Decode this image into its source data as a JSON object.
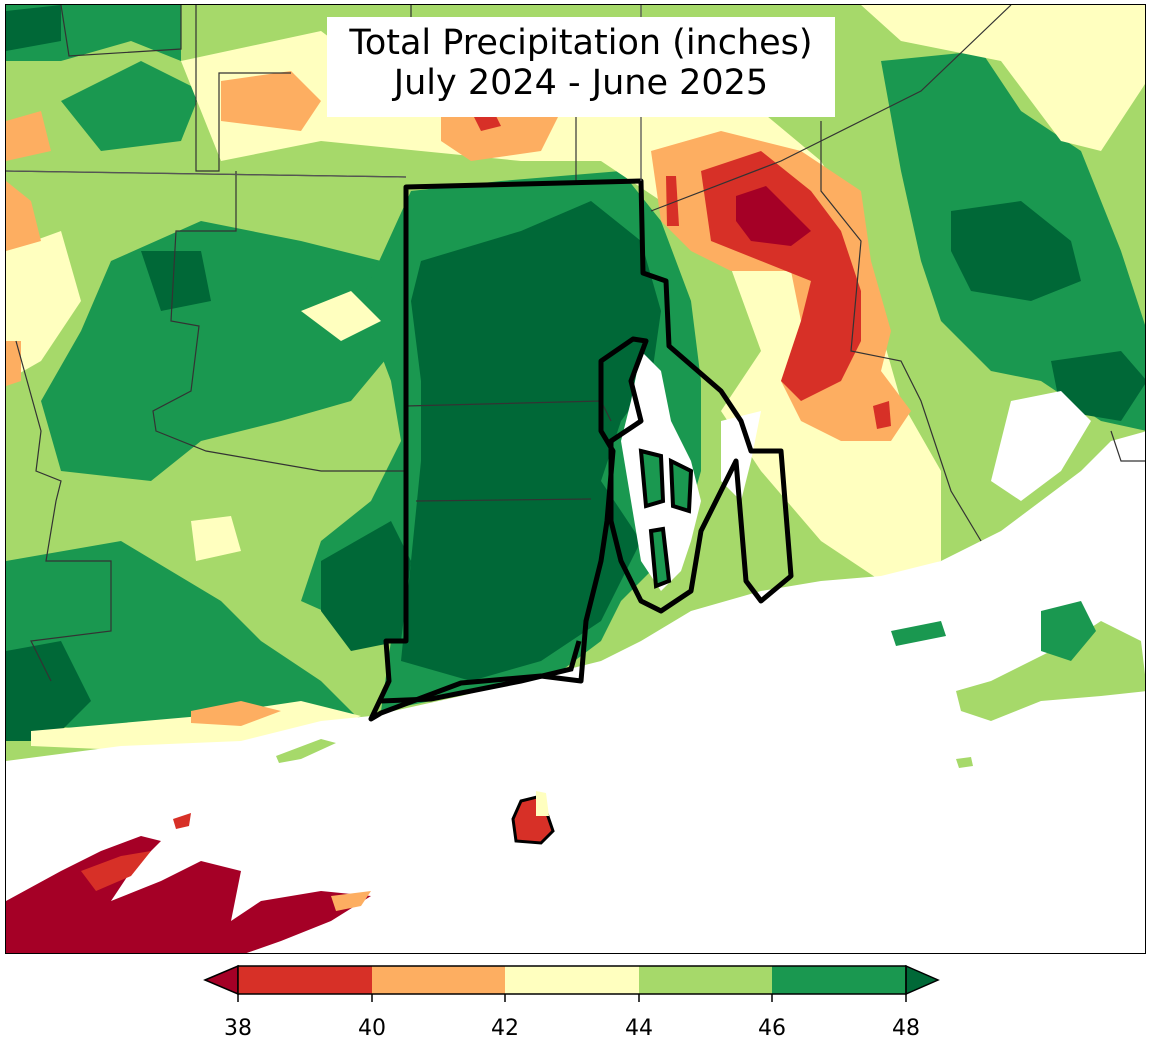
{
  "title": {
    "line1": "Total Precipitation (inches)",
    "line2": "July 2024 - June 2025"
  },
  "colors": {
    "below_38": "#a50026",
    "r38_40": "#d73027",
    "r40_42": "#fdae61",
    "r42_44": "#ffffbf",
    "r44_46": "#a6d96a",
    "r46_48": "#1a9850",
    "above_48": "#006837",
    "water": "#ffffff",
    "borders": "#000000"
  },
  "colorbar": {
    "ticks": [
      "38",
      "40",
      "42",
      "44",
      "46",
      "48"
    ],
    "extend": "both"
  }
}
